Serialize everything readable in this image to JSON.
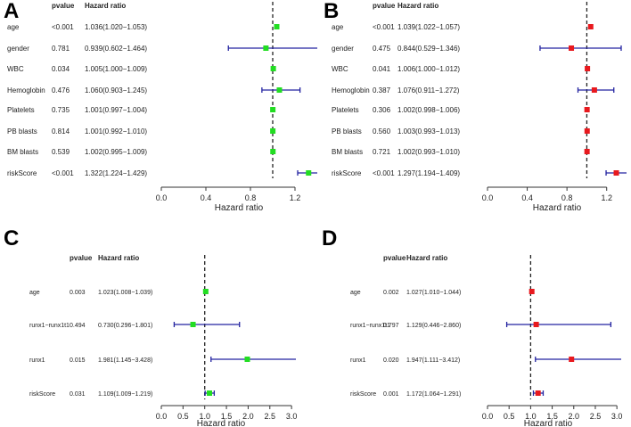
{
  "headers": {
    "pvalue": "pvalue",
    "hr": "Hazard ratio"
  },
  "colors": {
    "green": "#22dd22",
    "red": "#e8191e",
    "ci": "#2323a0"
  },
  "chart_data": [
    {
      "type": "forest",
      "panel": "A",
      "marker": "square",
      "color": "#22dd22",
      "xlabel": "Hazard ratio",
      "xlim": [
        0,
        1.4
      ],
      "ref": 1,
      "ticks": [
        0,
        0.4,
        0.8,
        1.2
      ],
      "tick_labels": [
        "0.0",
        "0.4",
        "0.8",
        "1.2"
      ],
      "rows": [
        {
          "name": "age",
          "pvalue": "<0.001",
          "hr_text": "1.036(1.020−1.053)",
          "hr": 1.036,
          "lo": 1.02,
          "hi": 1.053
        },
        {
          "name": "gender",
          "pvalue": "0.781",
          "hr_text": "0.939(0.602−1.464)",
          "hr": 0.939,
          "lo": 0.602,
          "hi": 1.464
        },
        {
          "name": "WBC",
          "pvalue": "0.034",
          "hr_text": "1.005(1.000−1.009)",
          "hr": 1.005,
          "lo": 1.0,
          "hi": 1.009
        },
        {
          "name": "Hemoglobin",
          "pvalue": "0.476",
          "hr_text": "1.060(0.903−1.245)",
          "hr": 1.06,
          "lo": 0.903,
          "hi": 1.245
        },
        {
          "name": "Platelets",
          "pvalue": "0.735",
          "hr_text": "1.001(0.997−1.004)",
          "hr": 1.001,
          "lo": 0.997,
          "hi": 1.004
        },
        {
          "name": "PB blasts",
          "pvalue": "0.814",
          "hr_text": "1.001(0.992−1.010)",
          "hr": 1.001,
          "lo": 0.992,
          "hi": 1.01
        },
        {
          "name": "BM blasts",
          "pvalue": "0.539",
          "hr_text": "1.002(0.995−1.009)",
          "hr": 1.002,
          "lo": 0.995,
          "hi": 1.009
        },
        {
          "name": "riskScore",
          "pvalue": "<0.001",
          "hr_text": "1.322(1.224−1.429)",
          "hr": 1.322,
          "lo": 1.224,
          "hi": 1.429
        }
      ]
    },
    {
      "type": "forest",
      "panel": "B",
      "marker": "square",
      "color": "#e8191e",
      "xlabel": "Hazard ratio",
      "xlim": [
        0,
        1.4
      ],
      "ref": 1,
      "ticks": [
        0,
        0.4,
        0.8,
        1.2
      ],
      "tick_labels": [
        "0.0",
        "0.4",
        "0.8",
        "1.2"
      ],
      "rows": [
        {
          "name": "age",
          "pvalue": "<0.001",
          "hr_text": "1.039(1.022−1.057)",
          "hr": 1.039,
          "lo": 1.022,
          "hi": 1.057
        },
        {
          "name": "gender",
          "pvalue": "0.475",
          "hr_text": "0.844(0.529−1.346)",
          "hr": 0.844,
          "lo": 0.529,
          "hi": 1.346
        },
        {
          "name": "WBC",
          "pvalue": "0.041",
          "hr_text": "1.006(1.000−1.012)",
          "hr": 1.006,
          "lo": 1.0,
          "hi": 1.012
        },
        {
          "name": "Hemoglobin",
          "pvalue": "0.387",
          "hr_text": "1.076(0.911−1.272)",
          "hr": 1.076,
          "lo": 0.911,
          "hi": 1.272
        },
        {
          "name": "Platelets",
          "pvalue": "0.306",
          "hr_text": "1.002(0.998−1.006)",
          "hr": 1.002,
          "lo": 0.998,
          "hi": 1.006
        },
        {
          "name": "PB blasts",
          "pvalue": "0.560",
          "hr_text": "1.003(0.993−1.013)",
          "hr": 1.003,
          "lo": 0.993,
          "hi": 1.013
        },
        {
          "name": "BM blasts",
          "pvalue": "0.721",
          "hr_text": "1.002(0.993−1.010)",
          "hr": 1.002,
          "lo": 0.993,
          "hi": 1.01
        },
        {
          "name": "riskScore",
          "pvalue": "<0.001",
          "hr_text": "1.297(1.194−1.409)",
          "hr": 1.297,
          "lo": 1.194,
          "hi": 1.409
        }
      ]
    },
    {
      "type": "forest",
      "panel": "C",
      "marker": "square",
      "color": "#22dd22",
      "xlabel": "Hazard ratio",
      "xlim": [
        0,
        3.1
      ],
      "ref": 1,
      "ticks": [
        0,
        0.5,
        1,
        1.5,
        2,
        2.5,
        3
      ],
      "tick_labels": [
        "0.0",
        "0.5",
        "1.0",
        "1.5",
        "2.0",
        "2.5",
        "3.0"
      ],
      "rows": [
        {
          "name": "age",
          "pvalue": "0.003",
          "hr_text": "1.023(1.008−1.039)",
          "hr": 1.023,
          "lo": 1.008,
          "hi": 1.039
        },
        {
          "name": "runx1−runx1t1",
          "pvalue": "0.494",
          "hr_text": "0.730(0.296−1.801)",
          "hr": 0.73,
          "lo": 0.296,
          "hi": 1.801
        },
        {
          "name": "runx1",
          "pvalue": "0.015",
          "hr_text": "1.981(1.145−3.428)",
          "hr": 1.981,
          "lo": 1.145,
          "hi": 3.428
        },
        {
          "name": "riskScore",
          "pvalue": "0.031",
          "hr_text": "1.109(1.009−1.219)",
          "hr": 1.109,
          "lo": 1.009,
          "hi": 1.219
        }
      ]
    },
    {
      "type": "forest",
      "panel": "D",
      "marker": "square",
      "color": "#e8191e",
      "xlabel": "Hazard ratio",
      "xlim": [
        0,
        3.1
      ],
      "ref": 1,
      "ticks": [
        0,
        0.5,
        1,
        1.5,
        2,
        2.5,
        3
      ],
      "tick_labels": [
        "0.0",
        "0.5",
        "1.0",
        "1.5",
        "2.0",
        "2.5",
        "3.0"
      ],
      "rows": [
        {
          "name": "age",
          "pvalue": "0.002",
          "hr_text": "1.027(1.010−1.044)",
          "hr": 1.027,
          "lo": 1.01,
          "hi": 1.044
        },
        {
          "name": "runx1−runx1t1",
          "pvalue": "0.797",
          "hr_text": "1.129(0.446−2.860)",
          "hr": 1.129,
          "lo": 0.446,
          "hi": 2.86
        },
        {
          "name": "runx1",
          "pvalue": "0.020",
          "hr_text": "1.947(1.111−3.412)",
          "hr": 1.947,
          "lo": 1.111,
          "hi": 3.412
        },
        {
          "name": "riskScore",
          "pvalue": "0.001",
          "hr_text": "1.172(1.064−1.291)",
          "hr": 1.172,
          "lo": 1.064,
          "hi": 1.291
        }
      ]
    }
  ]
}
